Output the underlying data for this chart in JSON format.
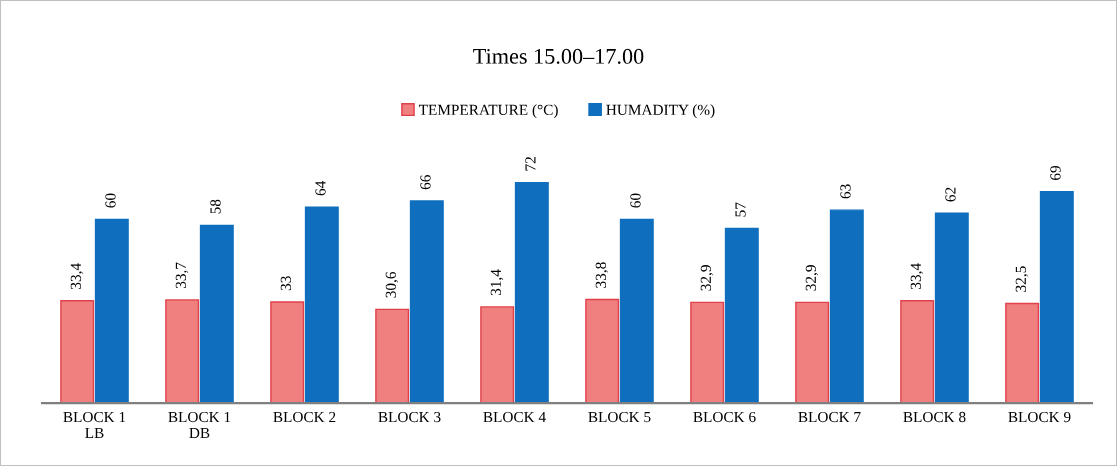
{
  "chart_data": {
    "type": "bar",
    "title": "Times 15.00–17.00",
    "relative": false,
    "categories": [
      "BLOCK 1 LB",
      "BLOCK 1 DB",
      "BLOCK 2",
      "BLOCK 3",
      "BLOCK 4",
      "BLOCK 5",
      "BLOCK 6",
      "BLOCK 7",
      "BLOCK 8",
      "BLOCK 9"
    ],
    "series": [
      {
        "name": "TEMPERATURE (°C)",
        "color": "#f07f7f",
        "values": [
          33.4,
          33.7,
          33,
          30.6,
          31.4,
          33.8,
          32.9,
          32.9,
          33.4,
          32.5
        ],
        "value_labels": [
          "33,4",
          "33,7",
          "33",
          "30,6",
          "31,4",
          "33,8",
          "32,9",
          "32,9",
          "33,4",
          "32,5"
        ]
      },
      {
        "name": "HUMADITY (%)",
        "color": "#0f6fbe",
        "values": [
          60,
          58,
          64,
          66,
          72,
          60,
          57,
          63,
          62,
          69
        ],
        "value_labels": [
          "60",
          "58",
          "64",
          "66",
          "72",
          "60",
          "57",
          "63",
          "62",
          "69"
        ]
      }
    ],
    "legend": "top",
    "grid": false
  }
}
